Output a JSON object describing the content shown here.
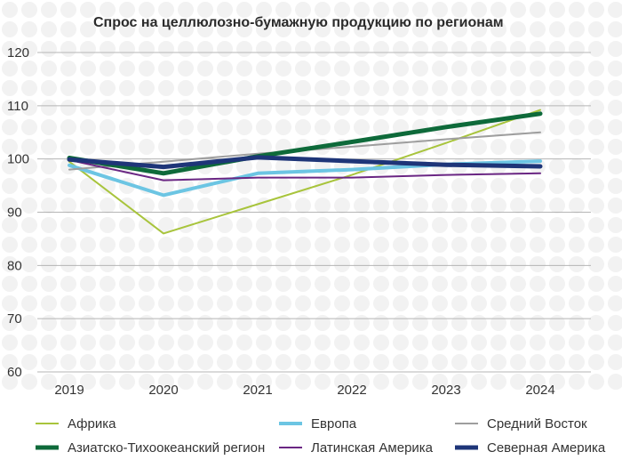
{
  "chart_data": {
    "type": "line",
    "title": "Спрос на целлюлозно-бумажную продукцию по регионам",
    "xlabel": "",
    "ylabel": "",
    "x": [
      "2019",
      "2020",
      "2021",
      "2022",
      "2023",
      "2024"
    ],
    "ylim": [
      60,
      120
    ],
    "yticks": [
      60,
      70,
      80,
      90,
      100,
      110,
      120
    ],
    "grid": true,
    "legend_position": "bottom",
    "series": [
      {
        "name": "Африка",
        "color": "#a8c43c",
        "values": [
          99.5,
          86,
          91.5,
          97,
          103,
          109.2
        ]
      },
      {
        "name": "Европа",
        "color": "#6cc5e3",
        "values": [
          98.8,
          93.2,
          97.3,
          98,
          99,
          99.6
        ]
      },
      {
        "name": "Средний Восток",
        "color": "#9e9e9e",
        "values": [
          98,
          99.5,
          101,
          102.3,
          103.7,
          105
        ]
      },
      {
        "name": "Азиатско-Тихоокеанский регион",
        "color": "#0e6a3a",
        "values": [
          100.2,
          97.3,
          100.5,
          103.2,
          106,
          108.5
        ]
      },
      {
        "name": "Латинская Америка",
        "color": "#6a2683",
        "values": [
          99.8,
          96,
          96.5,
          96.5,
          97,
          97.3
        ]
      },
      {
        "name": "Северная Америка",
        "color": "#1e3578",
        "values": [
          99.9,
          98.5,
          100.3,
          99.6,
          98.9,
          98.6
        ]
      }
    ]
  }
}
